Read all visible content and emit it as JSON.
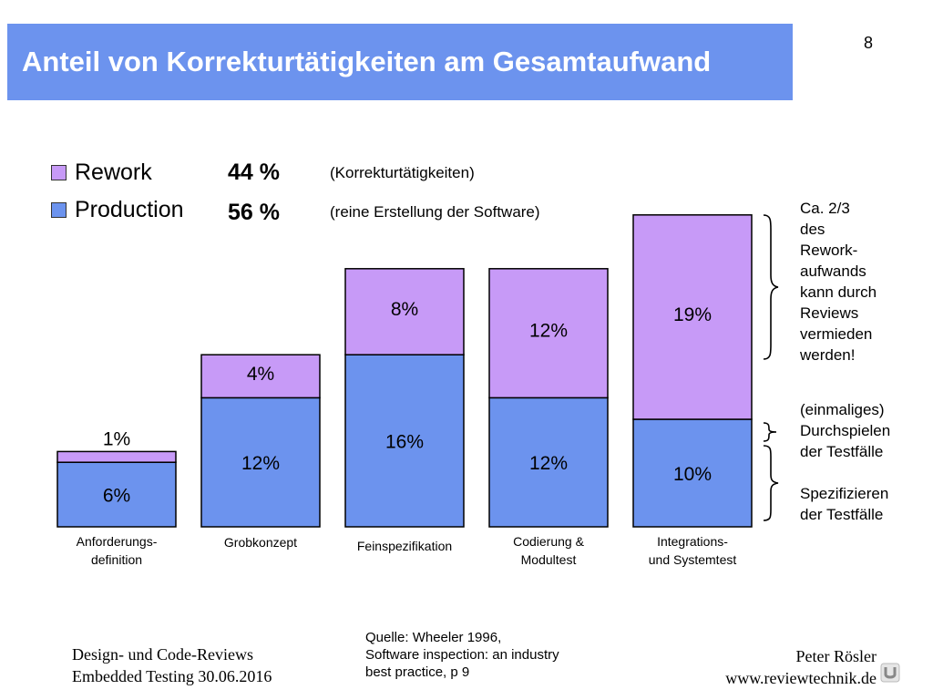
{
  "header": {
    "title": "Anteil von Korrekturtätigkeiten am Gesamtaufwand",
    "page_number": "8"
  },
  "legend": {
    "rework": {
      "name": "Rework",
      "percent": "44 %",
      "description": "(Korrekturtätigkeiten)"
    },
    "production": {
      "name": "Production",
      "percent": "56 %",
      "description": "(reine Erstellung der Software)"
    }
  },
  "colors": {
    "title_band": "#6c93ee",
    "rework": "#c79af7",
    "production": "#6c93ee",
    "outline": "#000000"
  },
  "chart_data": {
    "type": "bar",
    "stacked": true,
    "categories": [
      "Anforderungs-\ndefinition",
      "Grobkonzept",
      "Feinspezifikation",
      "Codierung &\nModultest",
      "Integrations-\nund Systemtest"
    ],
    "series": [
      {
        "name": "Production",
        "values": [
          6,
          12,
          16,
          12,
          10
        ],
        "labels": [
          "6%",
          "12%",
          "16%",
          "12%",
          "10%"
        ]
      },
      {
        "name": "Rework",
        "values": [
          1,
          4,
          8,
          12,
          19
        ],
        "labels": [
          "1%",
          "4%",
          "8%",
          "12%",
          "19%"
        ]
      }
    ]
  },
  "annotations": {
    "rework_note": [
      "Ca. 2/3",
      "des",
      "Rework-",
      "aufwands",
      "kann durch",
      "Reviews",
      "vermieden",
      "werden!"
    ],
    "test_run_note": [
      "(einmaliges)",
      "Durchspielen",
      "der Testfälle"
    ],
    "test_spec_note": [
      "Spezifizieren",
      "der Testfälle"
    ]
  },
  "footer": {
    "left": [
      "Design- und Code-Reviews",
      "Embedded Testing 30.06.2016"
    ],
    "source": [
      "Quelle: Wheeler 1996,",
      "Software inspection: an industry",
      "best practice, p 9"
    ],
    "right": [
      "Peter Rösler",
      "www.reviewtechnik.de"
    ],
    "logo_icon": "reviewtechnik-logo-icon"
  }
}
